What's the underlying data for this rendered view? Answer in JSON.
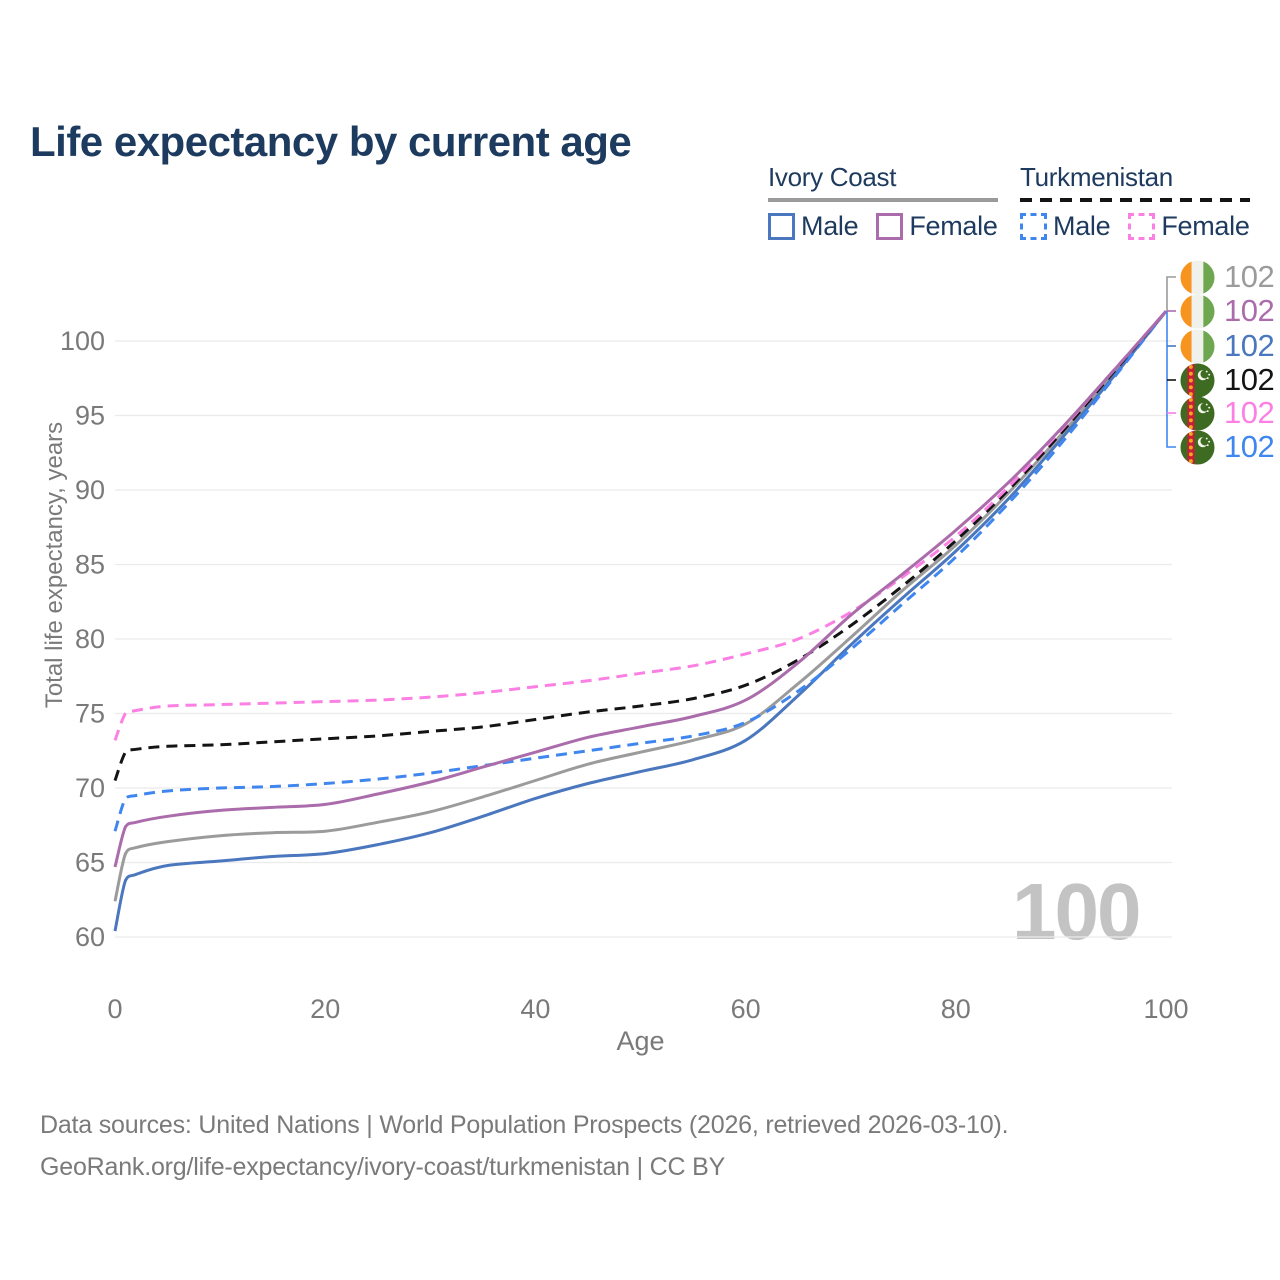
{
  "title": "Life expectancy by current age",
  "legend": {
    "groups": [
      {
        "country": "Ivory Coast",
        "line_style": "solid",
        "line_color": "#9b9b9b",
        "items": [
          {
            "label": "Male",
            "color": "#4a77bd",
            "dash": "solid"
          },
          {
            "label": "Female",
            "color": "#ab6cab",
            "dash": "solid"
          }
        ]
      },
      {
        "country": "Turkmenistan",
        "line_style": "dashed",
        "line_color": "#141414",
        "items": [
          {
            "label": "Male",
            "color": "#3f86ef",
            "dash": "dashed"
          },
          {
            "label": "Female",
            "color": "#fc7fe4",
            "dash": "dashed"
          }
        ]
      }
    ]
  },
  "watermark": "100",
  "chart_data": {
    "type": "line",
    "title": "Life expectancy by current age",
    "xlabel": "Age",
    "ylabel": "Total life expectancy, years",
    "x_ticks": [
      0,
      20,
      40,
      60,
      80,
      100
    ],
    "y_ticks": [
      60,
      65,
      70,
      75,
      80,
      85,
      90,
      95,
      100
    ],
    "xlim": [
      0,
      100
    ],
    "ylim": [
      60,
      102
    ],
    "grid": "horizontal-only",
    "legend_position": "top-right",
    "ages": [
      0,
      1,
      2,
      5,
      10,
      15,
      20,
      25,
      30,
      35,
      40,
      45,
      50,
      55,
      60,
      65,
      70,
      75,
      80,
      85,
      90,
      95,
      100
    ],
    "series": [
      {
        "id": "ic_both",
        "name": "Ivory Coast - Both sexes",
        "color": "#9b9b9b",
        "dash": "solid",
        "values": [
          62.4,
          65.6,
          66.0,
          66.4,
          66.8,
          67.0,
          67.1,
          67.7,
          68.4,
          69.4,
          70.5,
          71.6,
          72.4,
          73.2,
          74.3,
          77.0,
          80.1,
          83.3,
          86.3,
          89.8,
          93.7,
          97.8,
          102
        ]
      },
      {
        "id": "ic_male",
        "name": "Ivory Coast - Male",
        "color": "#4a77bd",
        "dash": "solid",
        "values": [
          60.4,
          63.8,
          64.2,
          64.8,
          65.1,
          65.4,
          65.6,
          66.2,
          67.0,
          68.1,
          69.3,
          70.3,
          71.1,
          71.9,
          73.2,
          76.2,
          79.6,
          82.8,
          85.9,
          89.4,
          93.4,
          97.6,
          102
        ]
      },
      {
        "id": "tm_male",
        "name": "Turkmenistan - Male",
        "color": "#3f86ef",
        "dash": "dashed",
        "values": [
          67.1,
          69.3,
          69.5,
          69.8,
          70.0,
          70.1,
          70.3,
          70.6,
          71.0,
          71.5,
          72.0,
          72.5,
          73.0,
          73.5,
          74.4,
          76.5,
          79.3,
          82.4,
          85.5,
          89.1,
          93.1,
          97.5,
          102
        ]
      },
      {
        "id": "tm_both",
        "name": "Turkmenistan - Both sexes",
        "color": "#141414",
        "dash": "dashed",
        "values": [
          70.5,
          72.4,
          72.6,
          72.8,
          72.9,
          73.1,
          73.3,
          73.5,
          73.8,
          74.1,
          74.6,
          75.1,
          75.5,
          76.0,
          76.9,
          78.6,
          80.9,
          83.6,
          86.6,
          90.0,
          93.8,
          97.9,
          102
        ]
      },
      {
        "id": "tm_female",
        "name": "Turkmenistan - Female",
        "color": "#fc7fe4",
        "dash": "dashed",
        "values": [
          73.2,
          75.0,
          75.2,
          75.5,
          75.6,
          75.7,
          75.8,
          75.9,
          76.1,
          76.4,
          76.8,
          77.2,
          77.7,
          78.2,
          79.0,
          80.0,
          81.8,
          84.2,
          86.9,
          90.2,
          94.0,
          98.0,
          102
        ]
      },
      {
        "id": "ic_female",
        "name": "Ivory Coast - Female",
        "color": "#ab6cab",
        "dash": "solid",
        "values": [
          64.7,
          67.4,
          67.7,
          68.1,
          68.5,
          68.7,
          68.9,
          69.6,
          70.4,
          71.4,
          72.4,
          73.4,
          74.1,
          74.8,
          75.9,
          78.4,
          81.6,
          84.4,
          87.3,
          90.5,
          94.1,
          98.0,
          102
        ]
      }
    ],
    "end_labels": [
      {
        "flag": "ivory-coast",
        "value": "102",
        "color": "#9b9b9b"
      },
      {
        "flag": "ivory-coast",
        "value": "102",
        "color": "#ab6cab"
      },
      {
        "flag": "ivory-coast",
        "value": "102",
        "color": "#4a77bd"
      },
      {
        "flag": "turkmenistan",
        "value": "102",
        "color": "#141414"
      },
      {
        "flag": "turkmenistan",
        "value": "102",
        "color": "#fc7fe4"
      },
      {
        "flag": "turkmenistan",
        "value": "102",
        "color": "#3f86ef"
      }
    ]
  },
  "footer": {
    "line1": "Data sources: United Nations | World Population Prospects (2026, retrieved 2026-03-10).",
    "line2": "GeoRank.org/life-expectancy/ivory-coast/turkmenistan | CC BY"
  }
}
